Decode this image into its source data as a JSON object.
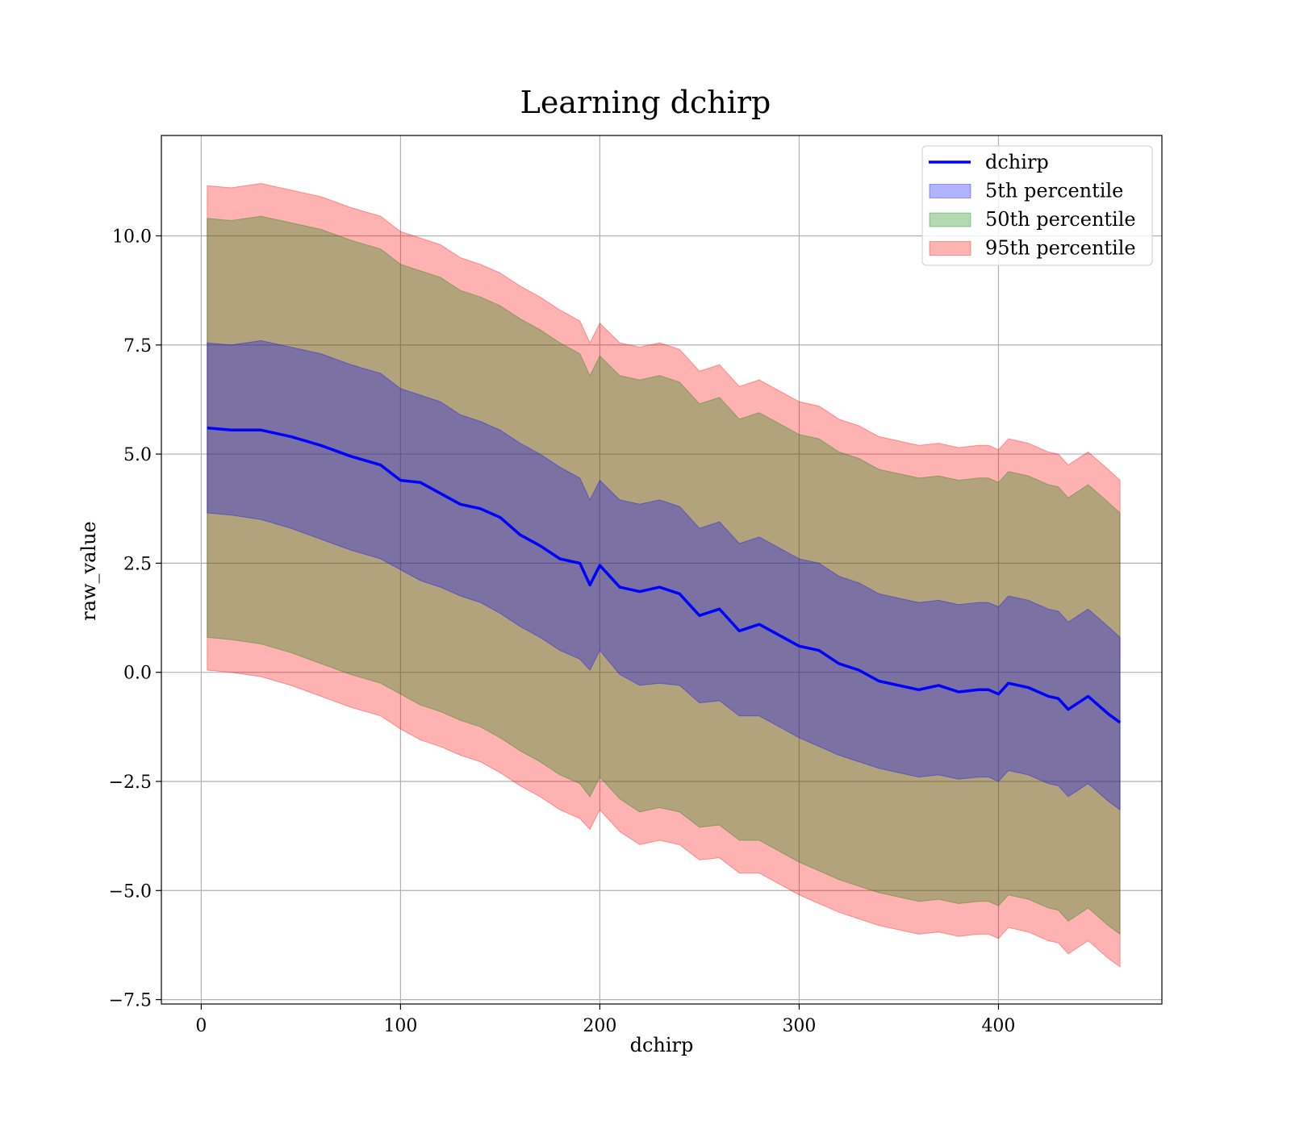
{
  "chart_data": {
    "type": "area",
    "title": "Learning dchirp",
    "xlabel": "dchirp",
    "ylabel": "raw_value",
    "xlim": [
      -20,
      482
    ],
    "ylim": [
      -7.6,
      12.3
    ],
    "xticks": [
      0,
      100,
      200,
      300,
      400
    ],
    "xtick_labels": [
      "0",
      "100",
      "200",
      "300",
      "400"
    ],
    "yticks": [
      -7.5,
      -5.0,
      -2.5,
      0.0,
      2.5,
      5.0,
      7.5,
      10.0
    ],
    "ytick_labels": [
      "−7.5",
      "−5.0",
      "−2.5",
      "0.0",
      "2.5",
      "5.0",
      "7.5",
      "10.0"
    ],
    "grid": true,
    "legend_position": "top-right",
    "x": [
      3,
      15,
      30,
      45,
      60,
      75,
      90,
      100,
      110,
      120,
      130,
      140,
      150,
      160,
      170,
      180,
      190,
      195,
      200,
      210,
      220,
      230,
      240,
      250,
      260,
      270,
      280,
      290,
      300,
      310,
      320,
      330,
      340,
      350,
      360,
      370,
      380,
      390,
      395,
      400,
      405,
      415,
      425,
      430,
      435,
      445,
      455,
      461
    ],
    "series": [
      {
        "name": "dchirp",
        "kind": "line",
        "color": "#0000ff",
        "values": [
          5.6,
          5.55,
          5.55,
          5.4,
          5.2,
          4.95,
          4.75,
          4.4,
          4.35,
          4.1,
          3.85,
          3.75,
          3.55,
          3.15,
          2.9,
          2.6,
          2.5,
          2.0,
          2.45,
          1.95,
          1.85,
          1.95,
          1.8,
          1.3,
          1.45,
          0.95,
          1.1,
          0.85,
          0.6,
          0.5,
          0.2,
          0.05,
          -0.2,
          -0.3,
          -0.4,
          -0.3,
          -0.45,
          -0.4,
          -0.4,
          -0.5,
          -0.25,
          -0.35,
          -0.55,
          -0.6,
          -0.85,
          -0.55,
          -0.95,
          -1.15
        ]
      },
      {
        "name": "5th percentile",
        "kind": "band",
        "color": "#0000ff",
        "lower": [
          3.65,
          3.6,
          3.5,
          3.3,
          3.05,
          2.8,
          2.6,
          2.35,
          2.1,
          1.95,
          1.75,
          1.6,
          1.35,
          1.05,
          0.8,
          0.5,
          0.3,
          0.05,
          0.5,
          -0.05,
          -0.3,
          -0.25,
          -0.3,
          -0.7,
          -0.65,
          -1.0,
          -1.0,
          -1.25,
          -1.5,
          -1.7,
          -1.9,
          -2.05,
          -2.2,
          -2.3,
          -2.4,
          -2.35,
          -2.45,
          -2.4,
          -2.4,
          -2.5,
          -2.25,
          -2.35,
          -2.55,
          -2.6,
          -2.85,
          -2.55,
          -2.95,
          -3.15
        ],
        "upper": [
          7.55,
          7.5,
          7.6,
          7.45,
          7.3,
          7.05,
          6.85,
          6.5,
          6.35,
          6.2,
          5.9,
          5.75,
          5.55,
          5.25,
          5.0,
          4.7,
          4.45,
          3.95,
          4.4,
          3.95,
          3.85,
          3.95,
          3.8,
          3.3,
          3.45,
          2.95,
          3.1,
          2.85,
          2.6,
          2.5,
          2.2,
          2.05,
          1.8,
          1.7,
          1.6,
          1.65,
          1.55,
          1.6,
          1.6,
          1.5,
          1.75,
          1.65,
          1.45,
          1.4,
          1.15,
          1.45,
          1.05,
          0.8
        ]
      },
      {
        "name": "50th percentile",
        "kind": "band",
        "color": "#008000",
        "lower": [
          0.8,
          0.75,
          0.65,
          0.45,
          0.2,
          -0.05,
          -0.25,
          -0.5,
          -0.75,
          -0.9,
          -1.1,
          -1.25,
          -1.5,
          -1.8,
          -2.05,
          -2.35,
          -2.55,
          -2.85,
          -2.4,
          -2.9,
          -3.2,
          -3.1,
          -3.2,
          -3.55,
          -3.5,
          -3.85,
          -3.85,
          -4.1,
          -4.35,
          -4.55,
          -4.75,
          -4.9,
          -5.05,
          -5.15,
          -5.25,
          -5.2,
          -5.3,
          -5.25,
          -5.25,
          -5.35,
          -5.1,
          -5.2,
          -5.4,
          -5.45,
          -5.7,
          -5.4,
          -5.8,
          -6.0
        ],
        "upper": [
          10.4,
          10.35,
          10.45,
          10.3,
          10.15,
          9.9,
          9.7,
          9.35,
          9.2,
          9.05,
          8.75,
          8.6,
          8.4,
          8.1,
          7.85,
          7.55,
          7.3,
          6.8,
          7.25,
          6.8,
          6.7,
          6.8,
          6.65,
          6.15,
          6.3,
          5.8,
          5.95,
          5.7,
          5.45,
          5.35,
          5.05,
          4.9,
          4.65,
          4.55,
          4.45,
          4.5,
          4.4,
          4.45,
          4.45,
          4.35,
          4.6,
          4.5,
          4.3,
          4.25,
          4.0,
          4.3,
          3.9,
          3.65
        ]
      },
      {
        "name": "95th percentile",
        "kind": "band",
        "color": "#ff0000",
        "lower": [
          0.05,
          0.0,
          -0.1,
          -0.3,
          -0.55,
          -0.8,
          -1.0,
          -1.3,
          -1.55,
          -1.7,
          -1.9,
          -2.05,
          -2.3,
          -2.6,
          -2.85,
          -3.15,
          -3.35,
          -3.6,
          -3.15,
          -3.65,
          -3.95,
          -3.85,
          -3.95,
          -4.3,
          -4.25,
          -4.6,
          -4.6,
          -4.85,
          -5.1,
          -5.3,
          -5.5,
          -5.65,
          -5.8,
          -5.9,
          -6.0,
          -5.95,
          -6.05,
          -6.0,
          -6.0,
          -6.1,
          -5.85,
          -5.95,
          -6.15,
          -6.2,
          -6.45,
          -6.15,
          -6.55,
          -6.75
        ],
        "upper": [
          11.15,
          11.1,
          11.2,
          11.05,
          10.9,
          10.65,
          10.45,
          10.1,
          9.95,
          9.8,
          9.5,
          9.35,
          9.15,
          8.85,
          8.6,
          8.3,
          8.05,
          7.55,
          8.0,
          7.55,
          7.45,
          7.55,
          7.4,
          6.9,
          7.05,
          6.55,
          6.7,
          6.45,
          6.2,
          6.1,
          5.8,
          5.65,
          5.4,
          5.3,
          5.2,
          5.25,
          5.15,
          5.2,
          5.2,
          5.1,
          5.35,
          5.25,
          5.05,
          5.0,
          4.75,
          5.05,
          4.65,
          4.4
        ]
      }
    ]
  }
}
